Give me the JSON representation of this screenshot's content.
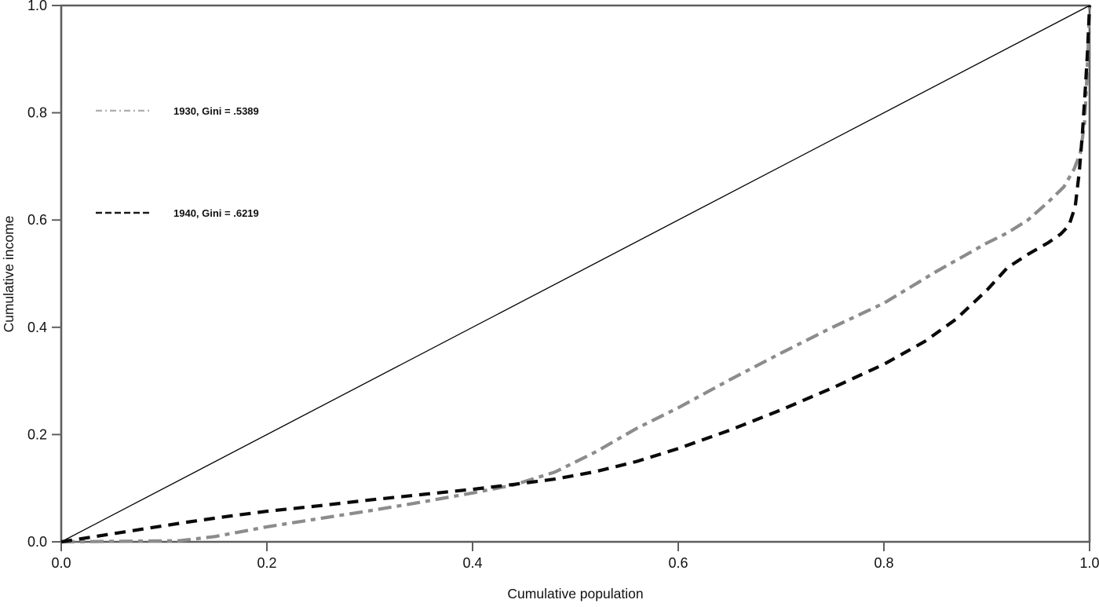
{
  "chart_data": {
    "type": "line",
    "title": "",
    "xlabel": "Cumulative population",
    "ylabel": "Cumulative income",
    "xlim": [
      0.0,
      1.0
    ],
    "ylim": [
      0.0,
      1.0
    ],
    "x_ticks": [
      "0.0",
      "0.2",
      "0.4",
      "0.6",
      "0.8",
      "1.0"
    ],
    "y_ticks": [
      "0.0",
      "0.2",
      "0.4",
      "0.6",
      "0.8",
      "1.0"
    ],
    "grid": false,
    "legend_position": "upper-left-inside",
    "series": [
      {
        "name": "line-of-equality",
        "label": "",
        "color": "#000000",
        "style": "solid",
        "width": 1.3,
        "points": [
          [
            0,
            0
          ],
          [
            1,
            1
          ]
        ]
      },
      {
        "name": "lorenz-1930",
        "label": "1930, Gini = .5389",
        "year": "1930",
        "gini": ".5389",
        "color": "#8c8c8c",
        "legend_color": "#b2b2b2",
        "style": "dash-dot",
        "width": 4.2,
        "points": [
          [
            0,
            0
          ],
          [
            0.06,
            0.001
          ],
          [
            0.115,
            0.002
          ],
          [
            0.15,
            0.01
          ],
          [
            0.2,
            0.028
          ],
          [
            0.25,
            0.043
          ],
          [
            0.3,
            0.058
          ],
          [
            0.35,
            0.074
          ],
          [
            0.4,
            0.091
          ],
          [
            0.44,
            0.106
          ],
          [
            0.48,
            0.13
          ],
          [
            0.52,
            0.168
          ],
          [
            0.56,
            0.212
          ],
          [
            0.6,
            0.25
          ],
          [
            0.65,
            0.302
          ],
          [
            0.7,
            0.352
          ],
          [
            0.75,
            0.4
          ],
          [
            0.8,
            0.445
          ],
          [
            0.85,
            0.503
          ],
          [
            0.9,
            0.557
          ],
          [
            0.92,
            0.576
          ],
          [
            0.94,
            0.6
          ],
          [
            0.96,
            0.634
          ],
          [
            0.975,
            0.662
          ],
          [
            0.985,
            0.695
          ],
          [
            0.991,
            0.725
          ],
          [
            0.995,
            0.78
          ],
          [
            0.997,
            0.85
          ],
          [
            0.999,
            0.94
          ],
          [
            1.0,
            1.0
          ]
        ]
      },
      {
        "name": "lorenz-1940",
        "label": "1940, Gini = .6219",
        "year": "1940",
        "gini": ".6219",
        "color": "#0a0a0a",
        "legend_color": "#1a1a1a",
        "style": "dashed",
        "width": 4.2,
        "points": [
          [
            0,
            0
          ],
          [
            0.04,
            0.012
          ],
          [
            0.08,
            0.024
          ],
          [
            0.12,
            0.036
          ],
          [
            0.16,
            0.047
          ],
          [
            0.2,
            0.057
          ],
          [
            0.25,
            0.067
          ],
          [
            0.3,
            0.078
          ],
          [
            0.35,
            0.088
          ],
          [
            0.4,
            0.098
          ],
          [
            0.44,
            0.107
          ],
          [
            0.48,
            0.117
          ],
          [
            0.52,
            0.131
          ],
          [
            0.56,
            0.15
          ],
          [
            0.6,
            0.174
          ],
          [
            0.65,
            0.208
          ],
          [
            0.7,
            0.246
          ],
          [
            0.75,
            0.287
          ],
          [
            0.8,
            0.331
          ],
          [
            0.84,
            0.374
          ],
          [
            0.87,
            0.415
          ],
          [
            0.9,
            0.469
          ],
          [
            0.92,
            0.511
          ],
          [
            0.94,
            0.536
          ],
          [
            0.96,
            0.558
          ],
          [
            0.972,
            0.574
          ],
          [
            0.98,
            0.59
          ],
          [
            0.986,
            0.625
          ],
          [
            0.99,
            0.69
          ],
          [
            0.993,
            0.76
          ],
          [
            0.996,
            0.85
          ],
          [
            0.998,
            0.915
          ],
          [
            1.0,
            1.0
          ]
        ]
      }
    ],
    "frame_color": "#5f5f5f"
  }
}
